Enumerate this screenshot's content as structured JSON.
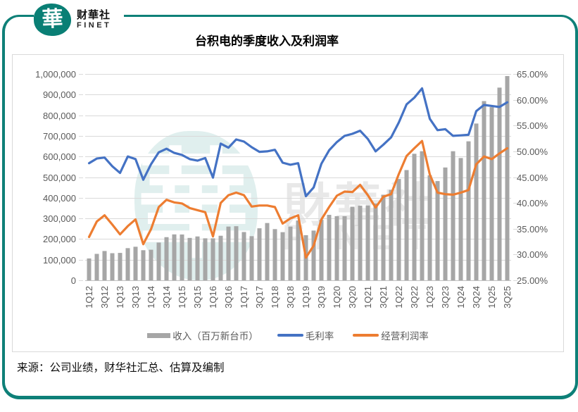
{
  "brand": {
    "glyph": "華",
    "name_cn": "财華社",
    "name_en": "FINET"
  },
  "watermark": {
    "glyph": "華",
    "text_cn": "財華社",
    "text_en": "FINET"
  },
  "source": "来源：公司业绩，财华社汇总、估算及编制",
  "colors": {
    "frame_teal": "#0e8078",
    "bar_gray": "#a6a6a6",
    "gross_blue": "#4472c4",
    "operating_orange": "#ed7d31",
    "grid": "#d9d9d9",
    "axis_line": "#bfbfbf",
    "axis_text": "#595959"
  },
  "chart_data": {
    "type": "bar",
    "subtype": "bar+line combo, dual axis",
    "title": "台积电的季度收入及利润率",
    "categories": [
      "1Q12",
      "2Q12",
      "3Q12",
      "4Q12",
      "1Q13",
      "2Q13",
      "3Q13",
      "4Q13",
      "1Q14",
      "2Q14",
      "3Q14",
      "4Q14",
      "1Q15",
      "2Q15",
      "3Q15",
      "4Q15",
      "1Q16",
      "2Q16",
      "3Q16",
      "4Q16",
      "1Q17",
      "2Q17",
      "3Q17",
      "4Q17",
      "1Q18",
      "2Q18",
      "3Q18",
      "4Q18",
      "1Q19",
      "2Q19",
      "3Q19",
      "4Q19",
      "1Q20",
      "2Q20",
      "3Q20",
      "4Q20",
      "1Q21",
      "2Q21",
      "3Q21",
      "4Q21",
      "1Q22",
      "2Q22",
      "3Q22",
      "4Q22",
      "1Q23",
      "2Q23",
      "3Q23",
      "4Q23",
      "1Q24",
      "2Q24",
      "3Q24",
      "4Q24",
      "1Q25",
      "2Q25",
      "3Q25"
    ],
    "x_axis": {
      "tick_every": 2,
      "first_tick": "1Q12",
      "last_tick": "3Q25",
      "label_rotation_deg": 90
    },
    "series": [
      {
        "name": "收入（百万新台币）",
        "type": "bar",
        "axis": "left",
        "color": "#a6a6a6",
        "values": [
          105853,
          128095,
          141938,
          131305,
          132755,
          155887,
          162577,
          145808,
          148219,
          183020,
          209047,
          222519,
          222030,
          205440,
          212506,
          203521,
          203495,
          215854,
          260412,
          262227,
          233914,
          213855,
          252112,
          277570,
          248079,
          233277,
          260348,
          289770,
          218704,
          240998,
          293045,
          317237,
          310597,
          310699,
          356426,
          361530,
          362410,
          372145,
          414671,
          438189,
          491076,
          534141,
          613143,
          625532,
          508633,
          480841,
          546733,
          625529,
          592644,
          673510,
          759692,
          868461,
          839254,
          933792,
          989918
        ]
      },
      {
        "name": "毛利率",
        "type": "line",
        "axis": "right",
        "color": "#4472c4",
        "values": [
          47.7,
          48.6,
          48.8,
          47.1,
          45.8,
          49.0,
          48.5,
          44.5,
          47.5,
          49.8,
          50.5,
          49.7,
          49.3,
          48.5,
          48.2,
          48.7,
          44.9,
          51.5,
          50.7,
          52.3,
          51.9,
          50.8,
          49.9,
          50.0,
          50.3,
          47.8,
          47.4,
          47.7,
          41.3,
          43.0,
          47.6,
          50.2,
          51.8,
          53.0,
          53.4,
          54.0,
          52.4,
          50.0,
          51.3,
          52.7,
          55.6,
          59.1,
          60.4,
          62.2,
          56.3,
          54.1,
          54.3,
          53.0,
          53.1,
          53.2,
          57.8,
          59.0,
          58.8,
          58.6,
          59.5
        ]
      },
      {
        "name": "经营利润率",
        "type": "line",
        "axis": "right",
        "color": "#ed7d31",
        "values": [
          33.4,
          36.4,
          37.6,
          35.8,
          33.9,
          35.5,
          36.8,
          32.0,
          34.9,
          39.2,
          40.6,
          40.1,
          39.9,
          39.0,
          38.6,
          38.2,
          33.5,
          40.0,
          41.5,
          42.0,
          41.5,
          39.3,
          39.5,
          39.5,
          39.2,
          36.0,
          37.0,
          37.6,
          29.4,
          31.7,
          36.8,
          39.2,
          41.4,
          42.2,
          42.1,
          43.5,
          41.5,
          39.1,
          41.2,
          41.7,
          45.6,
          49.1,
          50.6,
          52.0,
          45.5,
          42.0,
          41.7,
          41.6,
          42.0,
          42.5,
          47.5,
          49.0,
          48.5,
          49.6,
          50.6
        ]
      }
    ],
    "left_axis": {
      "min": 0,
      "max": 1000000,
      "step": 100000,
      "tick_labels": [
        "0",
        "100,000",
        "200,000",
        "300,000",
        "400,000",
        "500,000",
        "600,000",
        "700,000",
        "800,000",
        "900,000",
        "1,000,000"
      ]
    },
    "right_axis": {
      "min": 25,
      "max": 65,
      "step": 5,
      "tick_labels": [
        "25.00%",
        "30.00%",
        "35.00%",
        "40.00%",
        "45.00%",
        "50.00%",
        "55.00%",
        "60.00%",
        "65.00%"
      ]
    },
    "grid": true,
    "legend_position": "bottom"
  }
}
